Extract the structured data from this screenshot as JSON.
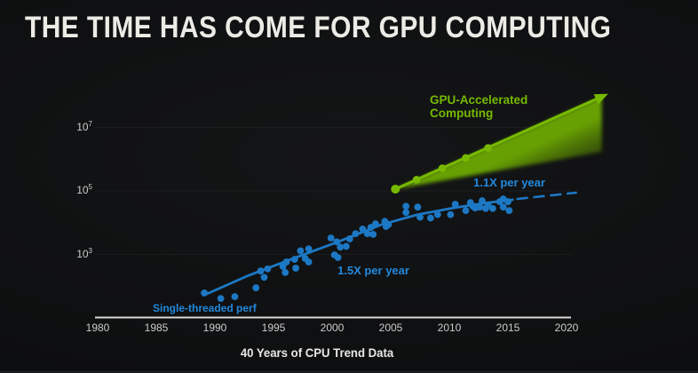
{
  "slide": {
    "title": "THE TIME HAS COME FOR GPU COMPUTING",
    "caption": "40 Years of CPU Trend Data"
  },
  "colors": {
    "background": "#0d0e0f",
    "title_text": "#edebe6",
    "axis": "#d8d8d8",
    "tick_text": "#cbcbcb",
    "blue": "#1d78c4",
    "blue_label": "#2289dd",
    "green": "#76b900"
  },
  "chart_data": {
    "type": "scatter",
    "title": "40 Years of CPU Trend Data",
    "x_axis": {
      "ticks": [
        1980,
        1985,
        1990,
        1995,
        2000,
        2005,
        2010,
        2015,
        2020
      ],
      "range": [
        1980,
        2023
      ]
    },
    "y_axis": {
      "scale": "log10",
      "tick_exponents": [
        7,
        5,
        3
      ],
      "range_exponents": [
        1,
        8
      ]
    },
    "grid": "faint-horizontal",
    "legend": "none",
    "annotations": {
      "gpu_line1": "GPU-Accelerated",
      "gpu_line2": "Computing",
      "rate_11x": "1.1X per year",
      "rate_15x": "1.5X per year",
      "single_thread": "Single-threaded perf"
    },
    "series": [
      {
        "name": "Single-threaded perf",
        "type": "scatter",
        "color_key": "blue",
        "points": [
          [
            1989.1,
            61
          ],
          [
            1990.5,
            41
          ],
          [
            1991.7,
            47
          ],
          [
            1993.5,
            89
          ],
          [
            1993.9,
            300
          ],
          [
            1994.2,
            190
          ],
          [
            1994.5,
            350
          ],
          [
            1995.8,
            420
          ],
          [
            1996.0,
            270
          ],
          [
            1996.1,
            580
          ],
          [
            1996.8,
            700
          ],
          [
            1996.9,
            370
          ],
          [
            1997.3,
            1300
          ],
          [
            1997.7,
            750
          ],
          [
            1998.0,
            1500
          ],
          [
            1998.0,
            580
          ],
          [
            1999.9,
            3300
          ],
          [
            2000.2,
            970
          ],
          [
            2000.4,
            2500
          ],
          [
            2000.5,
            800
          ],
          [
            2000.7,
            1700
          ],
          [
            2001.2,
            1800
          ],
          [
            2001.5,
            3100
          ],
          [
            2002.0,
            4500
          ],
          [
            2002.6,
            6300
          ],
          [
            2003.0,
            4500
          ],
          [
            2003.3,
            7100
          ],
          [
            2003.5,
            4300
          ],
          [
            2003.7,
            9200
          ],
          [
            2004.5,
            11000
          ],
          [
            2004.6,
            7600
          ],
          [
            2004.8,
            8700
          ],
          [
            2006.3,
            21000
          ],
          [
            2006.3,
            33000
          ],
          [
            2007.3,
            31000
          ],
          [
            2007.5,
            15000
          ],
          [
            2008.4,
            14000
          ],
          [
            2009.0,
            18000
          ],
          [
            2010.1,
            18000
          ],
          [
            2010.5,
            38000
          ],
          [
            2011.4,
            24000
          ],
          [
            2011.8,
            43000
          ],
          [
            2012.0,
            33000
          ],
          [
            2012.2,
            29000
          ],
          [
            2012.6,
            31000
          ],
          [
            2012.8,
            49000
          ],
          [
            2013.1,
            28000
          ],
          [
            2013.3,
            36000
          ],
          [
            2013.7,
            28000
          ],
          [
            2014.3,
            46000
          ],
          [
            2014.6,
            56000
          ],
          [
            2014.6,
            31000
          ],
          [
            2015.0,
            46000
          ],
          [
            2015.1,
            24000
          ]
        ]
      },
      {
        "name": "1.5X per year",
        "type": "line",
        "color_key": "blue",
        "points": [
          [
            1989.3,
            57
          ],
          [
            1992.9,
            220
          ],
          [
            1996.7,
            750
          ],
          [
            2000.5,
            2500
          ],
          [
            2004.2,
            8700
          ],
          [
            2007.3,
            18000
          ],
          [
            2010.3,
            29000
          ],
          [
            2012.9,
            41000
          ],
          [
            2015.4,
            53000
          ]
        ]
      },
      {
        "name": "1.1X per year",
        "type": "dashed_line",
        "color_key": "blue",
        "points": [
          [
            2015.8,
            56000
          ],
          [
            2020.8,
            88000
          ]
        ]
      },
      {
        "name": "GPU-Accelerated Computing",
        "type": "arrow_line",
        "color_key": "green",
        "fill": "green-gradient-below",
        "points": [
          [
            2005.4,
            114000
          ],
          [
            2023.0,
            93000000
          ]
        ],
        "marker_points": [
          [
            2005.4,
            114000
          ],
          [
            2007.2,
            226000
          ],
          [
            2009.4,
            520000
          ],
          [
            2011.4,
            1100000
          ],
          [
            2013.3,
            2260000
          ]
        ]
      }
    ]
  }
}
